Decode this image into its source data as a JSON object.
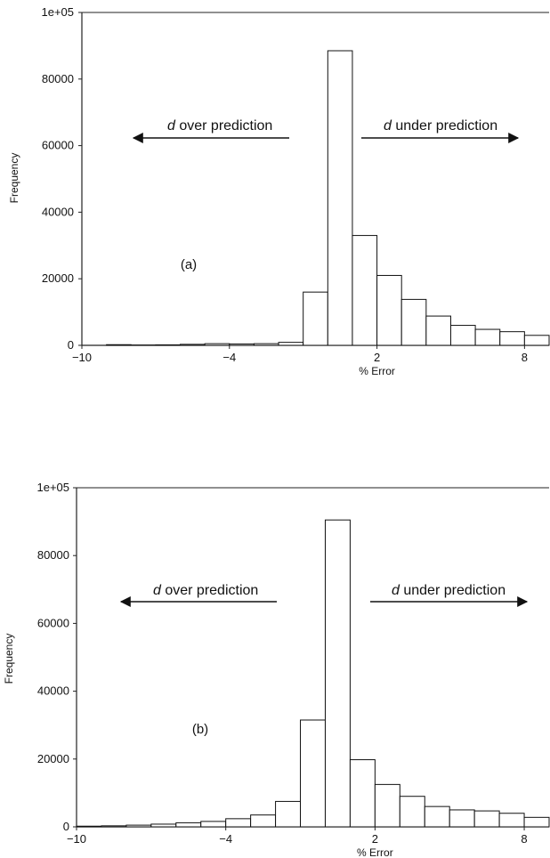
{
  "chart_data": [
    {
      "type": "bar",
      "panel_label": "(a)",
      "xlabel": "% Error",
      "ylabel": "Frequency",
      "xlim": [
        -10,
        9
      ],
      "ylim": [
        0,
        100000
      ],
      "xticks": [
        -10,
        -4,
        2,
        8
      ],
      "xtick_labels": [
        "−10",
        "−4",
        "2",
        "8"
      ],
      "yticks": [
        0,
        20000,
        40000,
        60000,
        80000,
        100000
      ],
      "ytick_labels": [
        "0",
        "20000",
        "40000",
        "60000",
        "80000",
        "1e+05"
      ],
      "bin_width": 1,
      "bin_starts": [
        -10,
        -9,
        -8,
        -7,
        -6,
        -5,
        -4,
        -3,
        -2,
        -1,
        0,
        1,
        2,
        3,
        4,
        5,
        6,
        7,
        8
      ],
      "values": [
        0,
        200,
        100,
        150,
        300,
        500,
        400,
        500,
        900,
        16000,
        88500,
        33000,
        21000,
        13800,
        8800,
        6000,
        4800,
        4100,
        3000
      ],
      "annotations": [
        {
          "italic": "d",
          "text": " over prediction",
          "arrow": "left"
        },
        {
          "italic": "d",
          "text": " under prediction",
          "arrow": "right"
        }
      ]
    },
    {
      "type": "bar",
      "panel_label": "(b)",
      "xlabel": "% Error",
      "ylabel": "Frequency",
      "xlim": [
        -10,
        9
      ],
      "ylim": [
        0,
        100000
      ],
      "xticks": [
        -10,
        -4,
        2,
        8
      ],
      "xtick_labels": [
        "−10",
        "−4",
        "2",
        "8"
      ],
      "yticks": [
        0,
        20000,
        40000,
        60000,
        80000,
        100000
      ],
      "ytick_labels": [
        "0",
        "20000",
        "40000",
        "60000",
        "80000",
        "1e+05"
      ],
      "bin_width": 1,
      "bin_starts": [
        -10,
        -9,
        -8,
        -7,
        -6,
        -5,
        -4,
        -3,
        -2,
        -1,
        0,
        1,
        2,
        3,
        4,
        5,
        6,
        7,
        8
      ],
      "values": [
        200,
        300,
        500,
        800,
        1200,
        1600,
        2400,
        3500,
        7500,
        31500,
        90500,
        19800,
        12500,
        9000,
        6000,
        5000,
        4700,
        4000,
        2800
      ],
      "annotations": [
        {
          "italic": "d",
          "text": " over prediction",
          "arrow": "left"
        },
        {
          "italic": "d",
          "text": " under prediction",
          "arrow": "right"
        }
      ]
    }
  ]
}
